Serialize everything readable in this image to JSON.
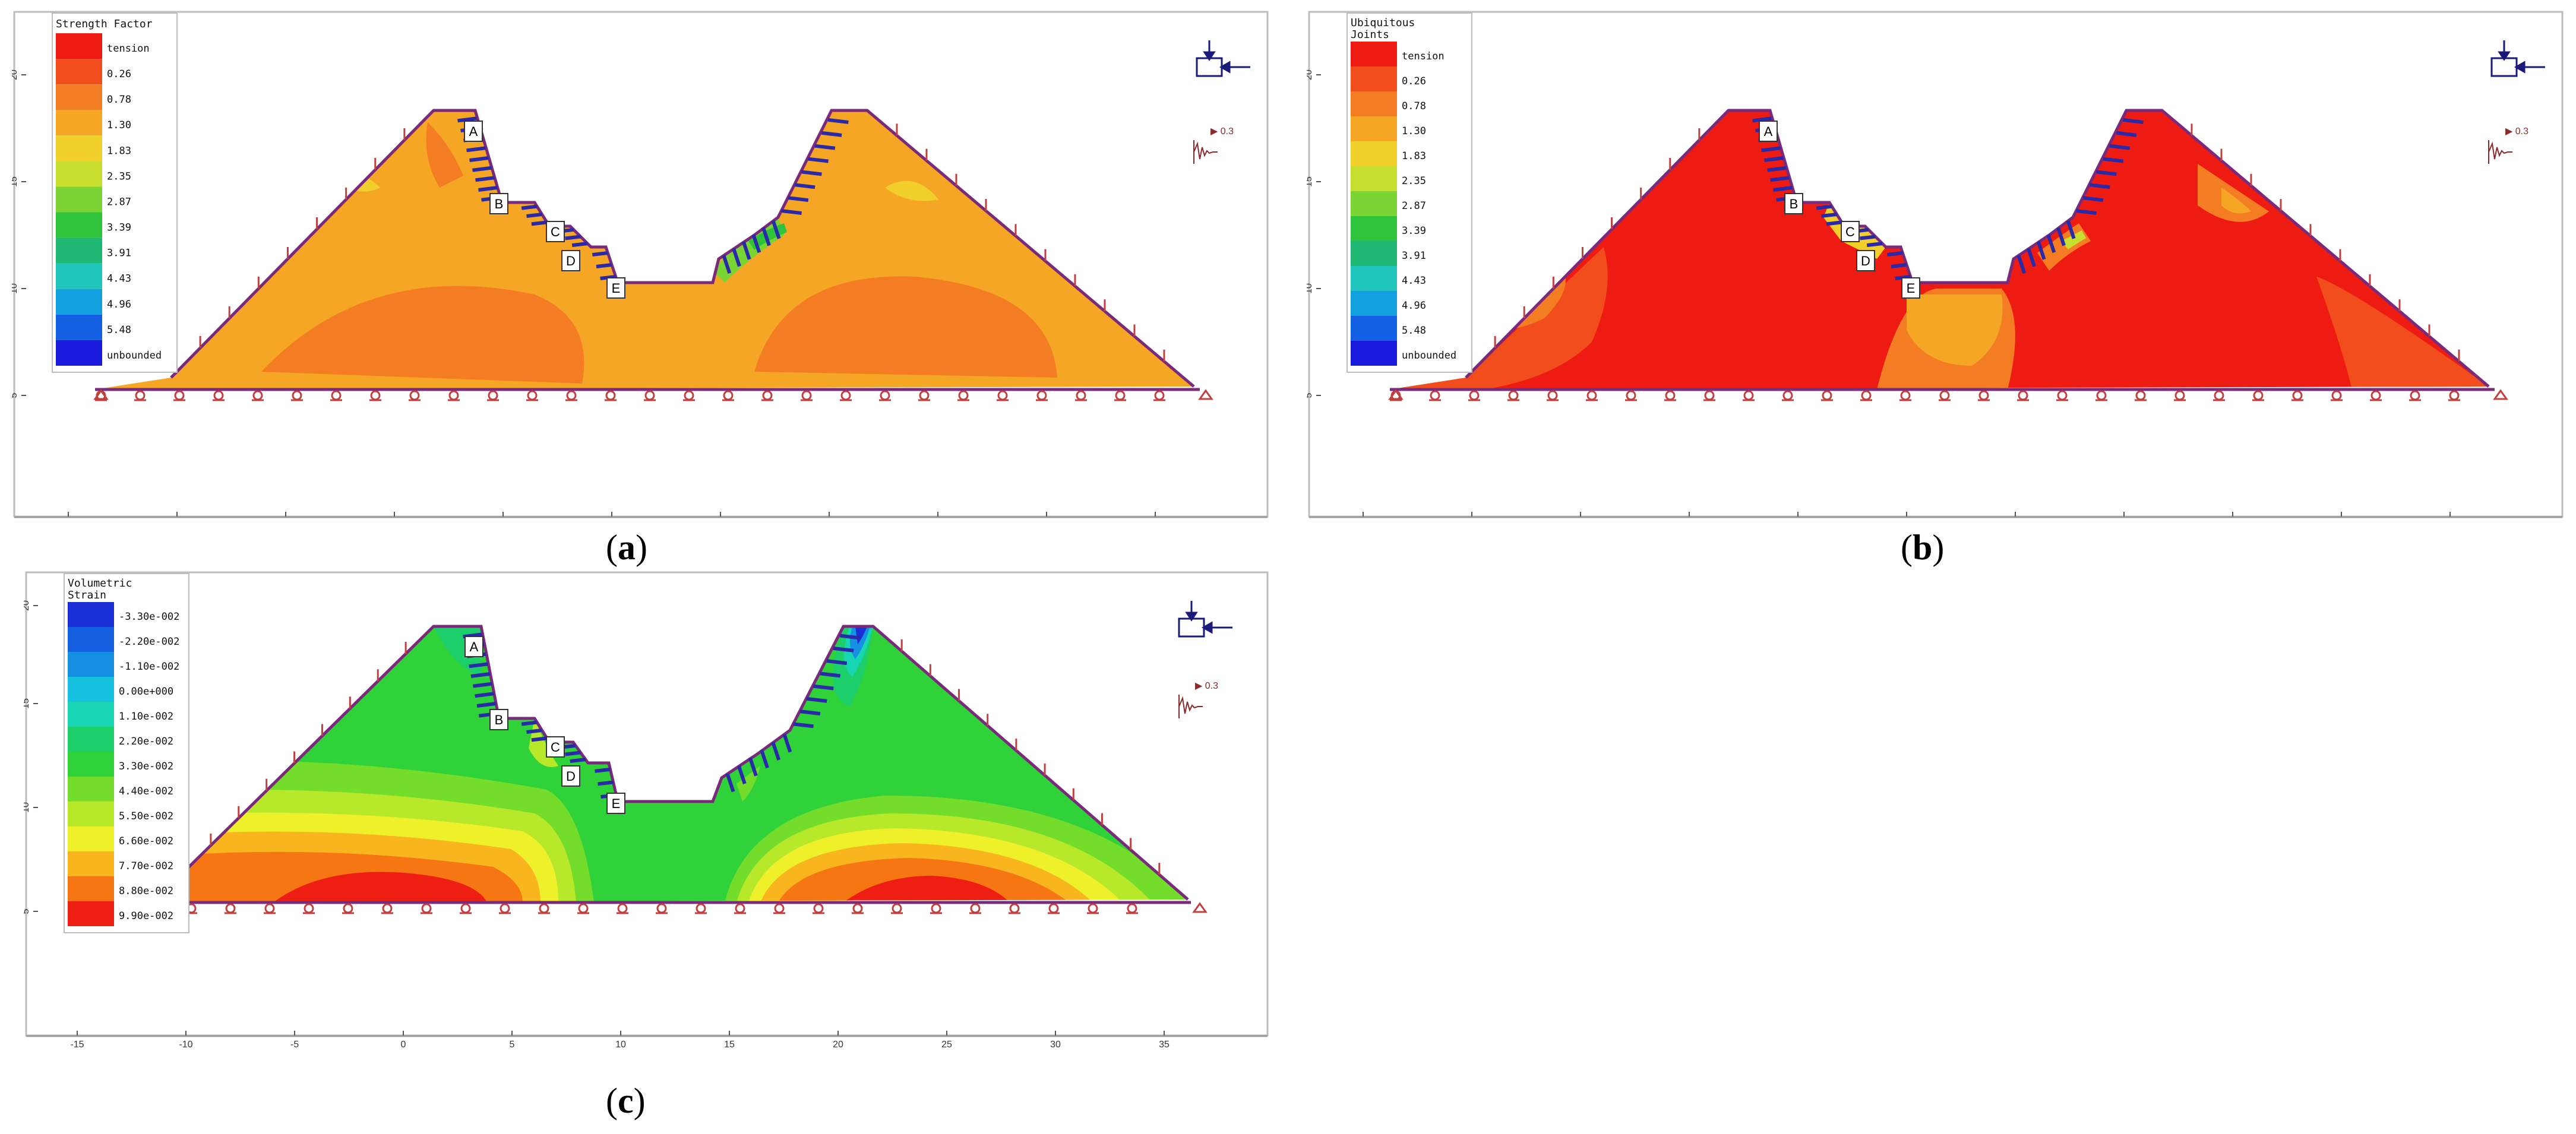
{
  "x_ticks": [
    "-15",
    "-10",
    "-5",
    "0",
    "5",
    "10",
    "15",
    "20",
    "25",
    "30",
    "35"
  ],
  "y_ticks": [
    "5",
    "10",
    "15",
    "20"
  ],
  "point_labels": [
    "A",
    "B",
    "C",
    "D",
    "E"
  ],
  "seismic_label": "▶ 0.3",
  "panels": [
    {
      "caption_letter": "a",
      "legend_title_lines": [
        "Strength Factor"
      ],
      "legend_entries": [
        "tension",
        "0.26",
        "0.78",
        "1.30",
        "1.83",
        "2.35",
        "2.87",
        "3.39",
        "3.91",
        "4.43",
        "4.96",
        "5.48",
        "unbounded"
      ],
      "legend_colors": [
        "#ee1b12",
        "#f24d1c",
        "#f47c23",
        "#f6a625",
        "#f2d02c",
        "#c8df30",
        "#7ad534",
        "#2fc23b",
        "#1fb874",
        "#1fc6b9",
        "#13a0df",
        "#1460e2",
        "#1a1adc"
      ]
    },
    {
      "caption_letter": "b",
      "legend_title_lines": [
        "Ubiquitous",
        "Joints"
      ],
      "legend_entries": [
        "tension",
        "0.26",
        "0.78",
        "1.30",
        "1.83",
        "2.35",
        "2.87",
        "3.39",
        "3.91",
        "4.43",
        "4.96",
        "5.48",
        "unbounded"
      ],
      "legend_colors": [
        "#ee1b12",
        "#f24d1c",
        "#f47c23",
        "#f6a625",
        "#f2d02c",
        "#c8df30",
        "#7ad534",
        "#2fc23b",
        "#1fb874",
        "#1fc6b9",
        "#13a0df",
        "#1460e2",
        "#1a1adc"
      ]
    },
    {
      "caption_letter": "c",
      "legend_title_lines": [
        "Volumetric",
        "Strain"
      ],
      "legend_entries": [
        "-3.30e-002",
        "-2.20e-002",
        "-1.10e-002",
        "0.00e+000",
        "1.10e-002",
        "2.20e-002",
        "3.30e-002",
        "4.40e-002",
        "5.50e-002",
        "6.60e-002",
        "7.70e-002",
        "8.80e-002",
        "9.90e-002"
      ],
      "legend_colors": [
        "#1a2fd6",
        "#1560e0",
        "#1690e3",
        "#17c1e0",
        "#18d6b4",
        "#1ccf6a",
        "#30d23a",
        "#74dd2c",
        "#b8e82a",
        "#eef02a",
        "#f9b51e",
        "#f77614",
        "#ef1e12"
      ]
    }
  ]
}
